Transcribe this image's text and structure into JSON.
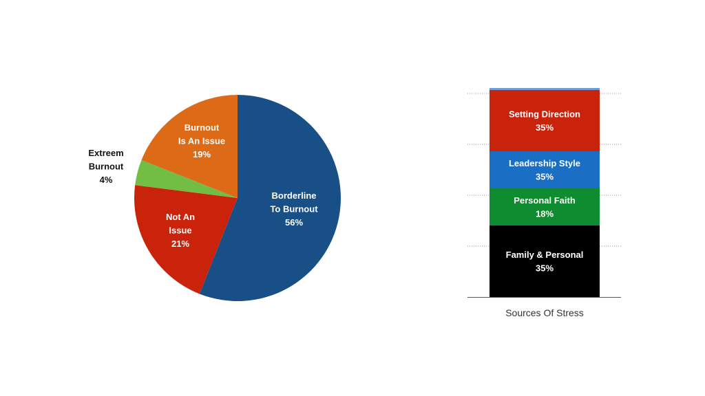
{
  "colors": {
    "blue_dark": "#174f86",
    "red": "#c9230c",
    "green_light": "#72be44",
    "orange": "#dd6a16",
    "blue": "#1a6ec4",
    "green": "#0f8c2f",
    "black": "#000000",
    "gridline": "#9a9a9a",
    "top_sliver": "#6e9bd8"
  },
  "chart_data": [
    {
      "type": "pie",
      "title": "",
      "start_angle_deg": 0,
      "direction": "clockwise",
      "slices": [
        {
          "id": "borderline",
          "lines": [
            "Borderline",
            "To Burnout",
            "56%"
          ],
          "value": 56,
          "color": "#174f86",
          "label_color": "white",
          "label_placement": "inside"
        },
        {
          "id": "not-an-issue",
          "lines": [
            "Not An",
            "Issue",
            "21%"
          ],
          "value": 21,
          "color": "#c9230c",
          "label_color": "white",
          "label_placement": "inside"
        },
        {
          "id": "extreem",
          "lines": [
            "Extreem",
            "Burnout",
            "4%"
          ],
          "value": 4,
          "color": "#72be44",
          "label_color": "black",
          "label_placement": "outside-left"
        },
        {
          "id": "burnout-issue",
          "lines": [
            "Burnout",
            "Is An Issue",
            "19%"
          ],
          "value": 19,
          "color": "#dd6a16",
          "label_color": "white",
          "label_placement": "inside"
        }
      ]
    },
    {
      "type": "bar",
      "stacked": true,
      "xlabel": "Sources Of Stress",
      "categories": [
        "Sources Of Stress"
      ],
      "gridlines": true,
      "segments": [
        {
          "id": "family",
          "name": "Family & Personal",
          "label": "35%",
          "value": 35,
          "color": "#000000"
        },
        {
          "id": "faith",
          "name": "Personal Faith",
          "label": "18%",
          "value": 18,
          "color": "#0f8c2f"
        },
        {
          "id": "leadership",
          "name": "Leadership Style",
          "label": "35%",
          "value": 35,
          "color": "#1a6ec4"
        },
        {
          "id": "direction",
          "name": "Setting Direction",
          "label": "35%",
          "value": 35,
          "color": "#c9230c"
        },
        {
          "id": "other",
          "name": "",
          "label": "",
          "value": 1,
          "color": "#6e9bd8"
        }
      ]
    }
  ]
}
